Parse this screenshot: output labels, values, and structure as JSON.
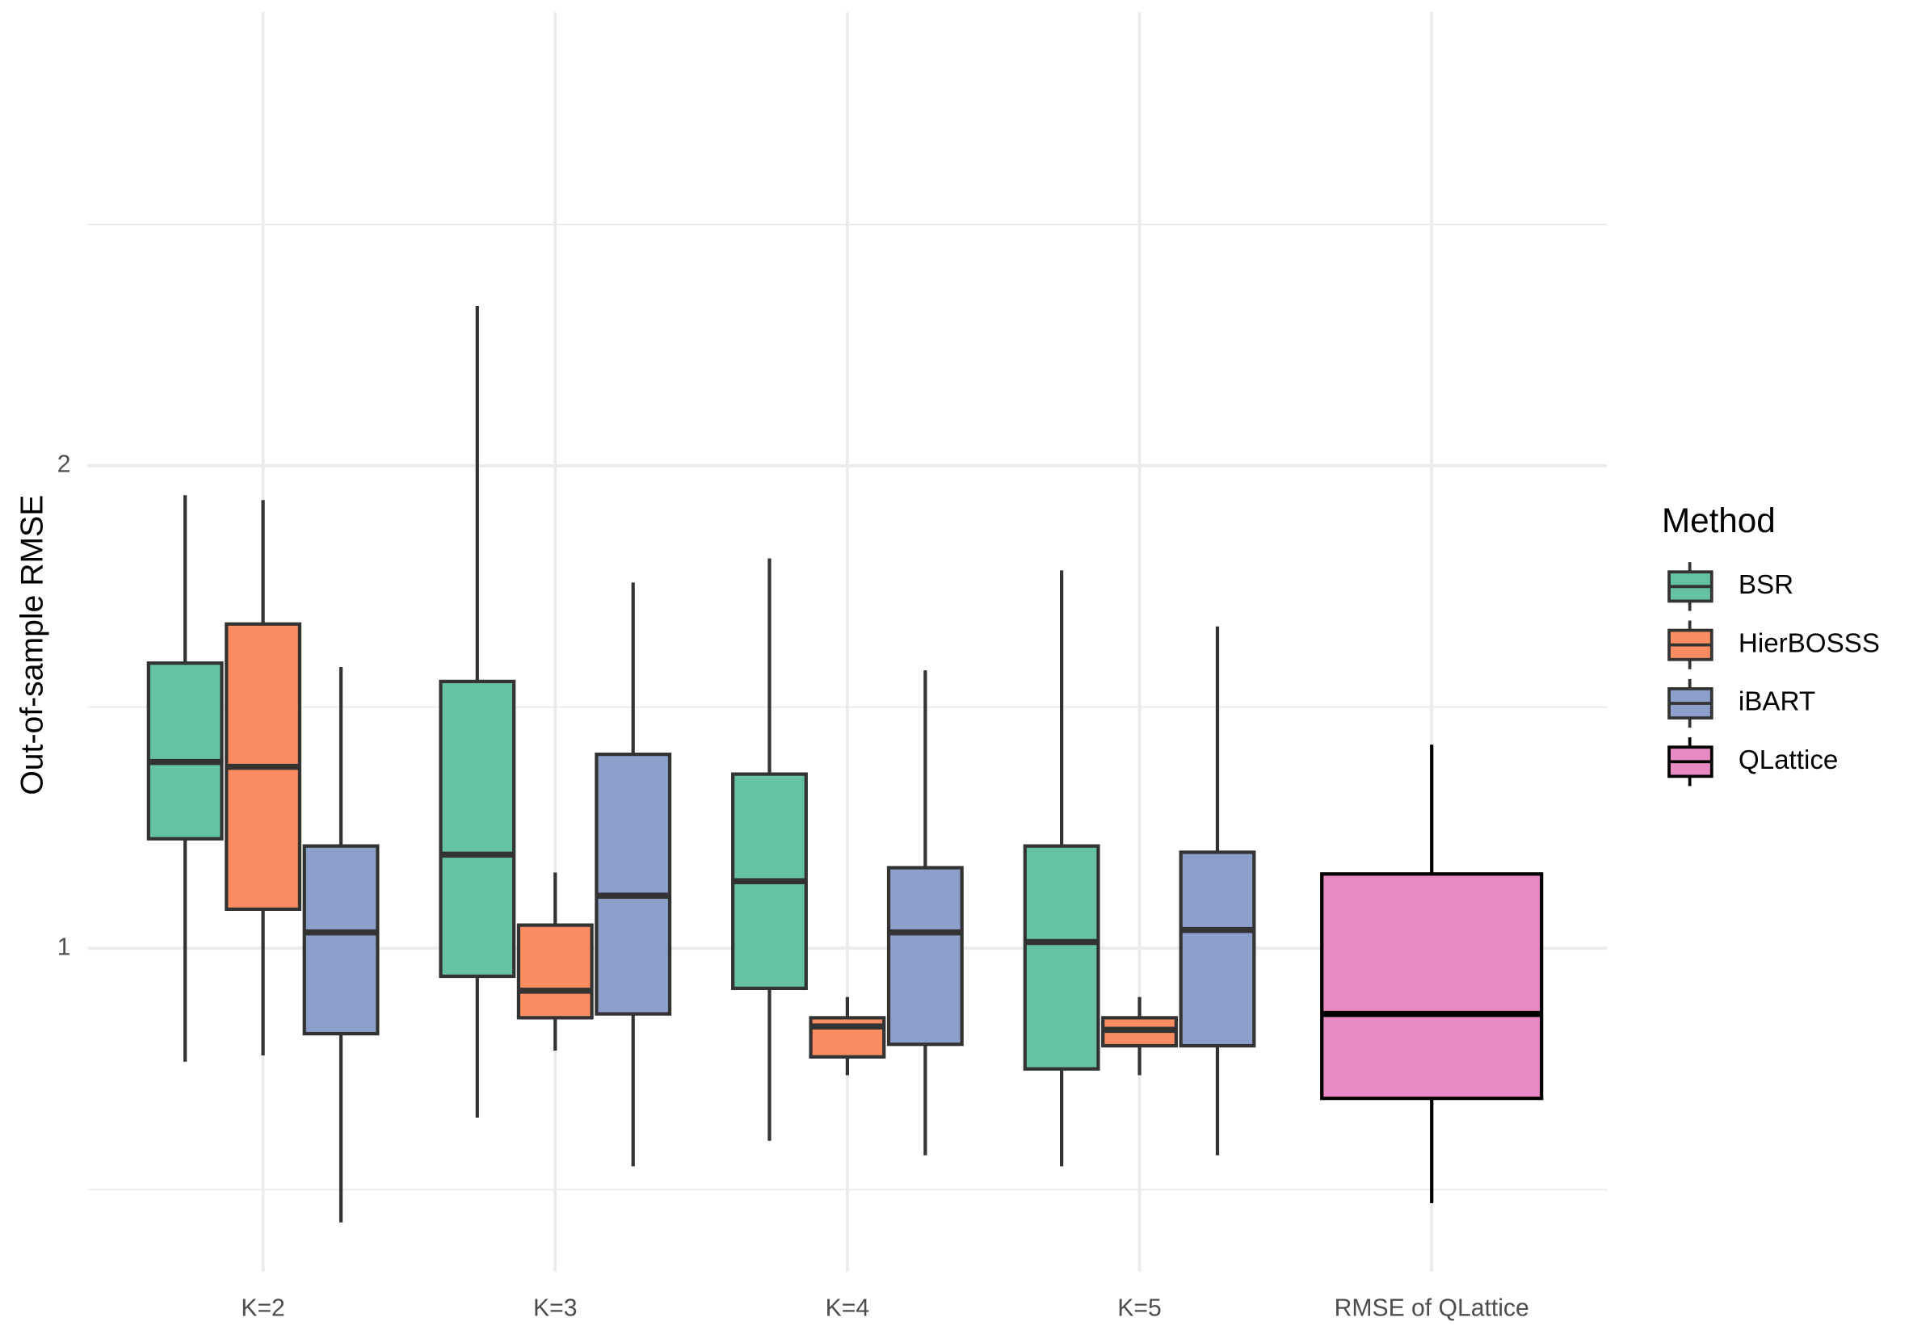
{
  "chart_data": {
    "type": "box",
    "y_label": "Out-of-sample RMSE",
    "legend_title": "Method",
    "categories": [
      "K=2",
      "K=3",
      "K=4",
      "K=5",
      "RMSE of QLattice"
    ],
    "ylim": [
      0.33,
      2.94
    ],
    "yticks": [
      1,
      2
    ],
    "y_minor_ticks": [
      0.5,
      1.5,
      2.5
    ],
    "grid": true,
    "legend": "right",
    "series": [
      {
        "name": "BSR",
        "color": "#66c2a5",
        "outline": "#333333",
        "values": [
          {
            "min": 0.765,
            "q1": 1.227,
            "median": 1.386,
            "q3": 1.591,
            "max": 1.939
          },
          {
            "min": 0.649,
            "q1": 0.942,
            "median": 1.194,
            "q3": 1.553,
            "max": 2.331
          },
          {
            "min": 0.601,
            "q1": 0.917,
            "median": 1.139,
            "q3": 1.361,
            "max": 1.808
          },
          {
            "min": 0.548,
            "q1": 0.75,
            "median": 1.013,
            "q3": 1.212,
            "max": 1.783
          },
          null
        ]
      },
      {
        "name": "HierBOSSS",
        "color": "#fc8d62",
        "outline": "#333333",
        "values": [
          {
            "min": 0.778,
            "q1": 1.081,
            "median": 1.376,
            "q3": 1.672,
            "max": 1.929
          },
          {
            "min": 0.788,
            "q1": 0.856,
            "median": 0.912,
            "q3": 1.048,
            "max": 1.157
          },
          {
            "min": 0.737,
            "q1": 0.775,
            "median": 0.838,
            "q3": 0.856,
            "max": 0.899
          },
          {
            "min": 0.737,
            "q1": 0.798,
            "median": 0.831,
            "q3": 0.856,
            "max": 0.899
          },
          null
        ]
      },
      {
        "name": "iBART",
        "color": "#8da0cb",
        "outline": "#333333",
        "values": [
          {
            "min": 0.432,
            "q1": 0.823,
            "median": 1.033,
            "q3": 1.212,
            "max": 1.583
          },
          {
            "min": 0.548,
            "q1": 0.864,
            "median": 1.109,
            "q3": 1.402,
            "max": 1.758
          },
          {
            "min": 0.571,
            "q1": 0.801,
            "median": 1.033,
            "q3": 1.167,
            "max": 1.576
          },
          {
            "min": 0.571,
            "q1": 0.798,
            "median": 1.038,
            "q3": 1.199,
            "max": 1.667
          },
          null
        ]
      },
      {
        "name": "QLattice",
        "color": "#e78ac3",
        "outline": "#000000",
        "values": [
          null,
          null,
          null,
          null,
          {
            "min": 0.472,
            "q1": 0.689,
            "median": 0.864,
            "q3": 1.154,
            "max": 1.422
          }
        ]
      }
    ]
  }
}
